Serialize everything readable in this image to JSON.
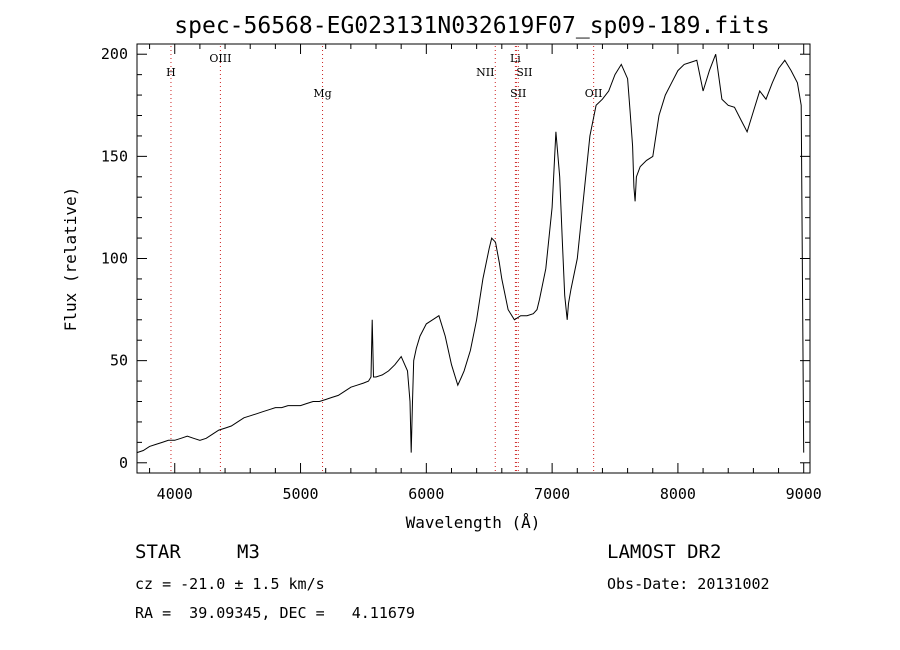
{
  "chart_data": {
    "type": "line",
    "title": "spec-56568-EG023131N032619F07_sp09-189.fits",
    "xlabel": "Wavelength (Å)",
    "ylabel": "Flux (relative)",
    "xlim": [
      3700,
      9050
    ],
    "ylim": [
      -5,
      205
    ],
    "xticks": [
      4000,
      5000,
      6000,
      7000,
      8000,
      9000
    ],
    "yticks": [
      0,
      50,
      100,
      150,
      200
    ],
    "grid": false,
    "series": [
      {
        "x": [
          3700,
          3750,
          3800,
          3850,
          3900,
          3950,
          4000,
          4050,
          4100,
          4150,
          4200,
          4250,
          4300,
          4350,
          4400,
          4450,
          4500,
          4550,
          4600,
          4650,
          4700,
          4750,
          4800,
          4850,
          4900,
          4950,
          5000,
          5050,
          5100,
          5150,
          5200,
          5250,
          5300,
          5350,
          5400,
          5450,
          5500,
          5540,
          5560,
          5570,
          5580,
          5600,
          5650,
          5700,
          5750,
          5800,
          5850,
          5870,
          5880,
          5890,
          5900,
          5920,
          5950,
          6000,
          6050,
          6100,
          6150,
          6200,
          6250,
          6280,
          6300,
          6350,
          6400,
          6450,
          6500,
          6520,
          6550,
          6580,
          6600,
          6650,
          6700,
          6750,
          6800,
          6850,
          6880,
          6900,
          6950,
          7000,
          7030,
          7060,
          7080,
          7100,
          7120,
          7130,
          7150,
          7200,
          7250,
          7300,
          7350,
          7400,
          7450,
          7500,
          7550,
          7600,
          7620,
          7640,
          7650,
          7660,
          7670,
          7700,
          7750,
          7800,
          7850,
          7900,
          7950,
          8000,
          8050,
          8100,
          8150,
          8200,
          8250,
          8300,
          8350,
          8400,
          8450,
          8500,
          8550,
          8600,
          8650,
          8700,
          8750,
          8800,
          8850,
          8900,
          8950,
          8980,
          9000
        ],
        "y": [
          5,
          6,
          8,
          9,
          10,
          11,
          11,
          12,
          13,
          12,
          11,
          12,
          14,
          16,
          17,
          18,
          20,
          22,
          23,
          24,
          25,
          26,
          27,
          27,
          28,
          28,
          28,
          29,
          30,
          30,
          31,
          32,
          33,
          35,
          37,
          38,
          39,
          40,
          42,
          70,
          42,
          42,
          43,
          45,
          48,
          52,
          45,
          30,
          5,
          30,
          50,
          56,
          62,
          68,
          70,
          72,
          62,
          48,
          38,
          42,
          45,
          55,
          70,
          90,
          105,
          110,
          108,
          98,
          90,
          75,
          70,
          72,
          72,
          73,
          75,
          80,
          95,
          125,
          162,
          140,
          110,
          82,
          70,
          78,
          85,
          100,
          130,
          160,
          175,
          178,
          182,
          190,
          195,
          188,
          172,
          155,
          135,
          128,
          140,
          145,
          148,
          150,
          170,
          180,
          186,
          192,
          195,
          196,
          197,
          182,
          192,
          200,
          178,
          175,
          174,
          168,
          162,
          172,
          182,
          178,
          186,
          193,
          197,
          192,
          186,
          175,
          5
        ]
      }
    ],
    "annotations": [
      {
        "label": "H",
        "x": 3970
      },
      {
        "label": "OIII",
        "x": 4363
      },
      {
        "label": "Mg",
        "x": 5175
      },
      {
        "label": "NII",
        "x": 6548
      },
      {
        "label": "Li",
        "x": 6708
      },
      {
        "label": "SII",
        "x": 6716
      },
      {
        "label": "SII",
        "x": 6731
      },
      {
        "label": "OII",
        "x": 7330
      }
    ]
  },
  "info": {
    "object_class": "STAR",
    "subclass": "M3",
    "survey": "LAMOST DR2",
    "cz": "cz = -21.0 ± 1.5 km/s",
    "obs_date": "Obs-Date: 20131002",
    "coords": "RA =  39.09345, DEC =   4.11679"
  }
}
